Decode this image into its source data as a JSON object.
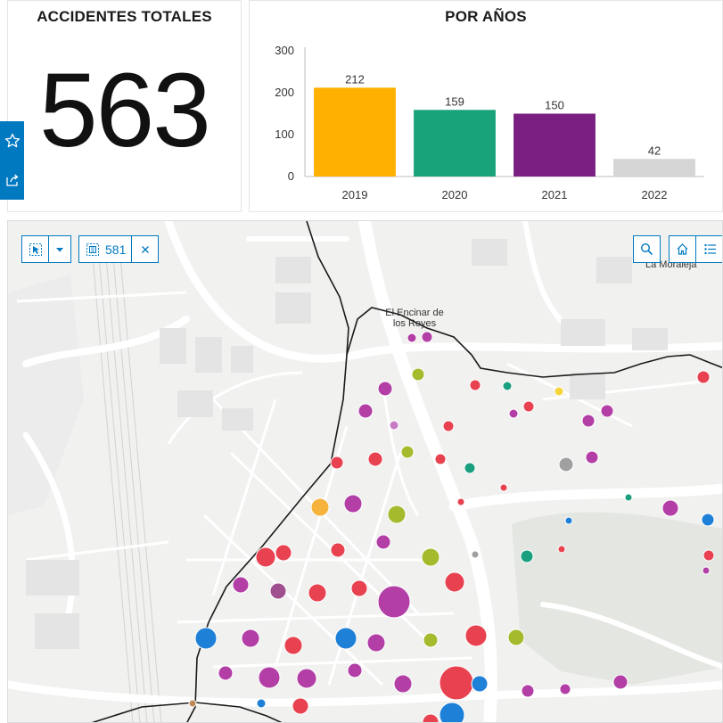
{
  "total": {
    "title": "ACCIDENTES TOTALES",
    "value": "563"
  },
  "years": {
    "title": "POR AÑOS"
  },
  "chart_data": {
    "type": "bar",
    "title": "POR AÑOS",
    "categories": [
      "2019",
      "2020",
      "2021",
      "2022"
    ],
    "values": [
      212,
      159,
      150,
      42
    ],
    "colors": [
      "#ffb000",
      "#18a379",
      "#781f81",
      "#d5d5d5"
    ],
    "yticks": [
      0,
      100,
      200,
      300
    ],
    "ylim": [
      0,
      300
    ],
    "grid": false,
    "legend": "none"
  },
  "map": {
    "selection_count": "581",
    "labels": {
      "encinar": "El Encinar de los Reyes",
      "moraleja": "La Moraleja"
    },
    "icons": {
      "select": "select-icon",
      "dropdown": "chevron-down-icon",
      "selection": "selection-icon",
      "clear": "close-icon",
      "search": "search-icon",
      "home": "home-icon",
      "legend": "legend-list-icon",
      "favorite": "star-icon",
      "share": "share-icon"
    },
    "point_colors": {
      "magenta": "#b23ea6",
      "red": "#e8414f",
      "blue": "#1f80d8",
      "olive": "#a6ba2d",
      "green": "#1a9f7f",
      "orange": "#f5b33b",
      "gray": "#a0a0a0"
    }
  }
}
